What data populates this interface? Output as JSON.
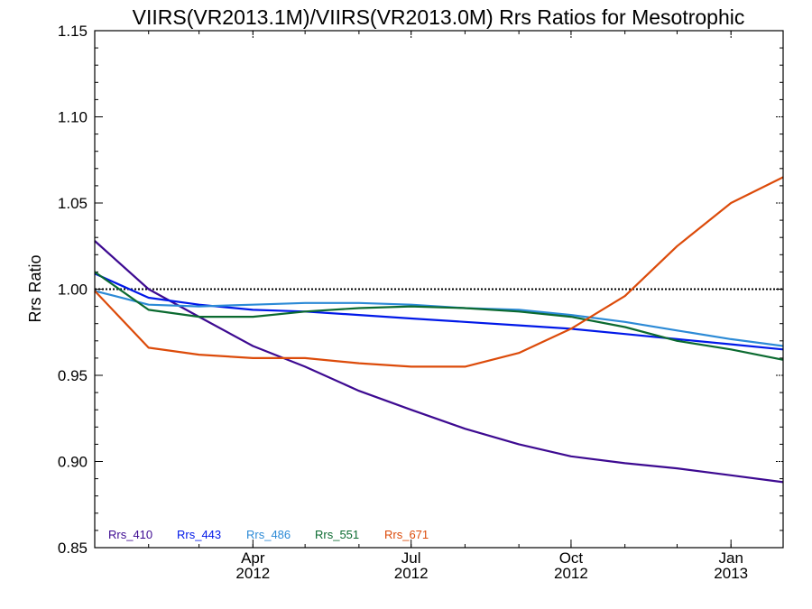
{
  "chart_data": {
    "type": "line",
    "title": "VIIRS(VR2013.1M)/VIIRS(VR2013.0M)  Rrs Ratios for Mesotrophic",
    "xlabel": "",
    "ylabel": "Rrs Ratio",
    "xlim": [
      "2012-01-01",
      "2013-01-31"
    ],
    "ylim": [
      0.85,
      1.15
    ],
    "yticks": [
      "0.85",
      "0.90",
      "0.95",
      "1.00",
      "1.05",
      "1.10",
      "1.15"
    ],
    "xticks": [
      {
        "date": "2012-04-01",
        "month": "Apr",
        "year": "2012"
      },
      {
        "date": "2012-07-01",
        "month": "Jul",
        "year": "2012"
      },
      {
        "date": "2012-10-01",
        "month": "Oct",
        "year": "2012"
      },
      {
        "date": "2013-01-01",
        "month": "Jan",
        "year": "2013"
      }
    ],
    "reference_line": 1.0,
    "legend_placement": "bottom-left",
    "series": [
      {
        "name": "Rrs_410",
        "color": "#3d0a91",
        "x": [
          "2012-01-01",
          "2012-02-01",
          "2012-03-01",
          "2012-04-01",
          "2012-05-01",
          "2012-06-01",
          "2012-07-01",
          "2012-08-01",
          "2012-09-01",
          "2012-10-01",
          "2012-11-01",
          "2012-12-01",
          "2013-01-01",
          "2013-01-31"
        ],
        "values": [
          1.028,
          1.0,
          0.984,
          0.967,
          0.955,
          0.941,
          0.93,
          0.919,
          0.91,
          0.903,
          0.899,
          0.896,
          0.892,
          0.888
        ]
      },
      {
        "name": "Rrs_443",
        "color": "#0018e8",
        "x": [
          "2012-01-01",
          "2012-02-01",
          "2012-03-01",
          "2012-04-01",
          "2012-05-01",
          "2012-06-01",
          "2012-07-01",
          "2012-08-01",
          "2012-09-01",
          "2012-10-01",
          "2012-11-01",
          "2012-12-01",
          "2013-01-01",
          "2013-01-31"
        ],
        "values": [
          1.009,
          0.995,
          0.991,
          0.988,
          0.987,
          0.985,
          0.983,
          0.981,
          0.979,
          0.977,
          0.974,
          0.971,
          0.968,
          0.965
        ]
      },
      {
        "name": "Rrs_486",
        "color": "#2c8ad6",
        "x": [
          "2012-01-01",
          "2012-02-01",
          "2012-03-01",
          "2012-04-01",
          "2012-05-01",
          "2012-06-01",
          "2012-07-01",
          "2012-08-01",
          "2012-09-01",
          "2012-10-01",
          "2012-11-01",
          "2012-12-01",
          "2013-01-01",
          "2013-01-31"
        ],
        "values": [
          0.999,
          0.991,
          0.99,
          0.991,
          0.992,
          0.992,
          0.991,
          0.989,
          0.988,
          0.985,
          0.981,
          0.976,
          0.971,
          0.967
        ]
      },
      {
        "name": "Rrs_551",
        "color": "#0b6a30",
        "x": [
          "2012-01-01",
          "2012-02-01",
          "2012-03-01",
          "2012-04-01",
          "2012-05-01",
          "2012-06-01",
          "2012-07-01",
          "2012-08-01",
          "2012-09-01",
          "2012-10-01",
          "2012-11-01",
          "2012-12-01",
          "2013-01-01",
          "2013-01-31"
        ],
        "values": [
          1.01,
          0.988,
          0.984,
          0.984,
          0.987,
          0.989,
          0.99,
          0.989,
          0.987,
          0.984,
          0.978,
          0.97,
          0.965,
          0.959
        ]
      },
      {
        "name": "Rrs_671",
        "color": "#dc4b0a",
        "x": [
          "2012-01-01",
          "2012-02-01",
          "2012-03-01",
          "2012-04-01",
          "2012-05-01",
          "2012-06-01",
          "2012-07-01",
          "2012-08-01",
          "2012-09-01",
          "2012-10-01",
          "2012-11-01",
          "2012-12-01",
          "2013-01-01",
          "2013-01-31"
        ],
        "values": [
          0.999,
          0.966,
          0.962,
          0.96,
          0.96,
          0.957,
          0.955,
          0.955,
          0.963,
          0.977,
          0.996,
          1.025,
          1.05,
          1.065
        ]
      }
    ]
  }
}
